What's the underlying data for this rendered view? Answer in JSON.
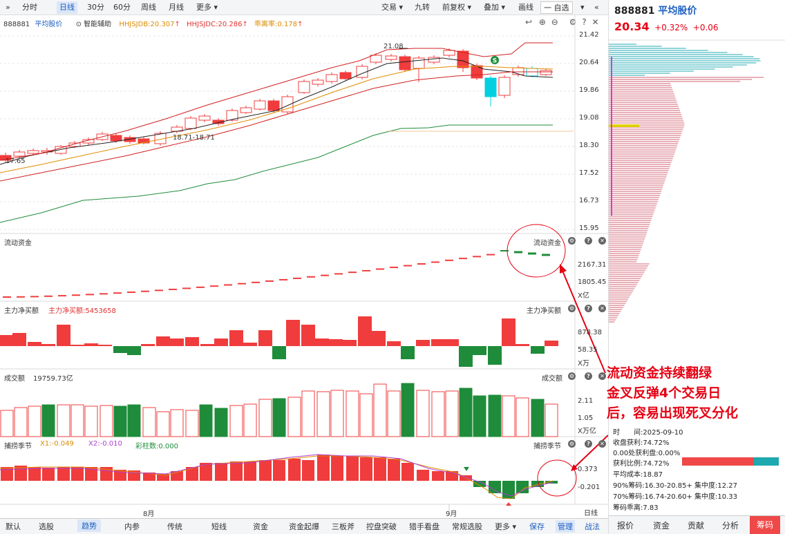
{
  "toolbar": {
    "left": [
      {
        "label": "分时",
        "sel": false
      },
      {
        "label": "日线",
        "sel": true
      },
      {
        "label": "30分",
        "sel": false
      },
      {
        "label": "60分",
        "sel": false
      },
      {
        "label": "周线",
        "sel": false
      },
      {
        "label": "月线",
        "sel": false
      },
      {
        "label": "更多 ▾",
        "sel": false
      }
    ],
    "right": [
      {
        "label": "交易 ▾"
      },
      {
        "label": "九转"
      },
      {
        "label": "前复权 ▾"
      },
      {
        "label": "叠加 ▾"
      },
      {
        "label": "画线"
      },
      {
        "label": "一 自选"
      },
      {
        "label": "▾"
      }
    ]
  },
  "header": {
    "code": "888881",
    "name": "平均股价",
    "assist": "智能辅助",
    "hhjsjdb": "HHJSJDB:20.307",
    "hhjsjdc": "HHJSJDC:20.286",
    "deviation": "乖离率:0.178"
  },
  "price_axis": [
    "21.42",
    "20.64",
    "19.86",
    "19.08",
    "18.30",
    "17.52",
    "16.73",
    "15.95"
  ],
  "kline_labels": {
    "high": "21.08",
    "mid": "18.71-18.71",
    "low": "17.65"
  },
  "panels": {
    "flow": {
      "title": "流动资金",
      "right_title": "流动资金",
      "ticks": [
        "2167.31",
        "1805.45"
      ],
      "unit": "X亿"
    },
    "net": {
      "title": "主力净买额",
      "value": "主力净买额:5453658",
      "right_title": "主力净买额",
      "ticks": [
        "878.38",
        "58.35"
      ],
      "unit": "X万"
    },
    "turnover": {
      "title": "成交额",
      "value": "19759.73亿",
      "right_title": "成交额",
      "ticks": [
        "2.11",
        "1.05"
      ],
      "unit": "X万亿"
    },
    "season": {
      "title": "捕捞季节",
      "x1": "X1:-0.049",
      "x2": "X2:-0.010",
      "count": "彩柱数:0.000",
      "right_title": "捕捞季节",
      "ticks": [
        "0.373",
        "-0.201"
      ]
    }
  },
  "months": [
    "8月",
    "9月"
  ],
  "bottom_tabs": [
    {
      "label": "默认"
    },
    {
      "label": "选股"
    },
    {
      "label": "趋势",
      "sel": true
    },
    {
      "label": "内参"
    },
    {
      "label": "传统"
    },
    {
      "label": "短线"
    },
    {
      "label": "资金"
    },
    {
      "label": "资金起爆"
    },
    {
      "label": "三板斧"
    },
    {
      "label": "控盘突破"
    },
    {
      "label": "猎手看盘"
    },
    {
      "label": "常规选股"
    },
    {
      "label": "更多 ▾"
    },
    {
      "label": "保存"
    },
    {
      "label": "管理"
    },
    {
      "label": "战法"
    }
  ],
  "right_panel": {
    "code": "888881",
    "name": "平均股价",
    "price": "20.34",
    "pct": "+0.32%",
    "chg": "+0.06",
    "tabs": [
      "报价",
      "资金",
      "贡献",
      "分析",
      "筹码"
    ],
    "info": [
      "时　　间:2025-09-10",
      "收盘获利:74.72%",
      "0.00处获利盘:0.00%",
      "获利比例:74.72%",
      "平均成本:18.87",
      "90%筹码:16.30-20.85+ 集中度:12.27",
      "70%筹码:16.74-20.60+ 集中度:10.33",
      "筹码乖离:7.83"
    ]
  },
  "annotation": [
    "流动资金持续翻绿",
    "金叉反弹4个交易日",
    "后，容易出现死叉分化"
  ],
  "day_tab": "日线",
  "colors": {
    "up": "#f03c3c",
    "down": "#1e8c3a",
    "cyan": "#00d0e0",
    "blue": "#1d5fbf",
    "red": "#e60012"
  }
}
